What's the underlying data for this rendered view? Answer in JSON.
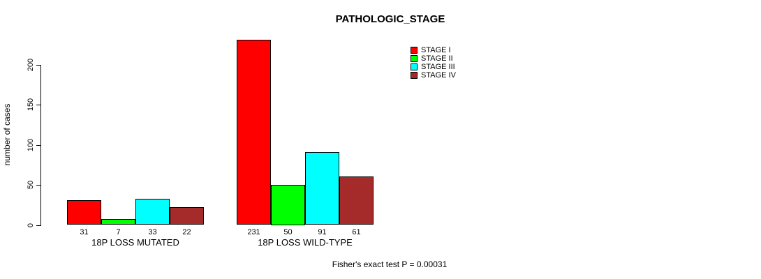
{
  "title": "PATHOLOGIC_STAGE",
  "footnote": "Fisher's exact test P = 0.00031",
  "colors": {
    "background": "#FFFFFF",
    "axis": "#000000",
    "bar_border": "#000000",
    "stage_1": "#FF0000",
    "stage_2": "#00FF00",
    "stage_3": "#00FFFF",
    "stage_4": "#A52A2A"
  },
  "chart_data": {
    "type": "bar",
    "title": "PATHOLOGIC_STAGE",
    "xlabel": "",
    "ylabel": "number of cases",
    "ylim": [
      0,
      200
    ],
    "yticks": [
      0,
      50,
      100,
      150,
      200
    ],
    "grid": false,
    "legend_position": "top-right",
    "categories": [
      "18P LOSS MUTATED",
      "18P LOSS WILD-TYPE"
    ],
    "series": [
      {
        "name": "STAGE I",
        "color": "#FF0000",
        "values": [
          31,
          231
        ]
      },
      {
        "name": "STAGE II",
        "color": "#00FF00",
        "values": [
          7,
          50
        ]
      },
      {
        "name": "STAGE III",
        "color": "#00FFFF",
        "values": [
          33,
          91
        ]
      },
      {
        "name": "STAGE IV",
        "color": "#A52A2A",
        "values": [
          22,
          61
        ]
      }
    ],
    "bar_labels": [
      [
        "31",
        "7",
        "33",
        "22"
      ],
      [
        "231",
        "50",
        "91",
        "61"
      ]
    ],
    "annotation": "Fisher's exact test P = 0.00031"
  }
}
